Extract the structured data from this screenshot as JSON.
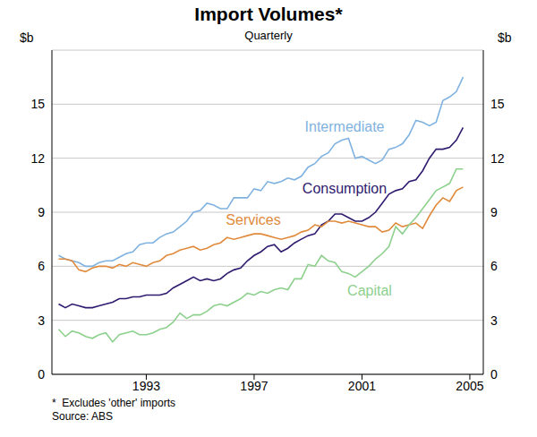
{
  "chart_data": {
    "type": "line",
    "title": "Import Volumes*",
    "subtitle": "Quarterly",
    "y_label": "$b",
    "notes": [
      "*  Excludes 'other' imports",
      "Source: ABS"
    ],
    "x": [
      1989.75,
      1990,
      1990.25,
      1990.5,
      1990.75,
      1991,
      1991.25,
      1991.5,
      1991.75,
      1992,
      1992.25,
      1992.5,
      1992.75,
      1993,
      1993.25,
      1993.5,
      1993.75,
      1994,
      1994.25,
      1994.5,
      1994.75,
      1995,
      1995.25,
      1995.5,
      1995.75,
      1996,
      1996.25,
      1996.5,
      1996.75,
      1997,
      1997.25,
      1997.5,
      1997.75,
      1998,
      1998.25,
      1998.5,
      1998.75,
      1999,
      1999.25,
      1999.5,
      1999.75,
      2000,
      2000.25,
      2000.5,
      2000.75,
      2001,
      2001.25,
      2001.5,
      2001.75,
      2002,
      2002.25,
      2002.5,
      2002.75,
      2003,
      2003.25,
      2003.5,
      2003.75,
      2004,
      2004.25,
      2004.5,
      2004.75
    ],
    "xlim": [
      1989.5,
      2005.5
    ],
    "xticks": [
      1993,
      1997,
      2001,
      2005
    ],
    "ylim": [
      0,
      18
    ],
    "yticks": [
      0,
      3,
      6,
      9,
      12,
      15
    ],
    "grid": true,
    "series": [
      {
        "name": "Intermediate",
        "color": "#7fb2e0",
        "values": [
          6.6,
          6.4,
          6.3,
          6.2,
          6.0,
          6.0,
          6.2,
          6.3,
          6.3,
          6.5,
          6.7,
          6.8,
          7.2,
          7.3,
          7.3,
          7.6,
          7.8,
          7.9,
          8.2,
          8.5,
          9.0,
          9.1,
          9.5,
          9.4,
          9.2,
          9.2,
          9.8,
          9.8,
          9.8,
          10.3,
          10.2,
          10.7,
          10.6,
          10.7,
          10.9,
          10.8,
          11.0,
          11.5,
          11.7,
          12.1,
          12.3,
          12.8,
          13.0,
          13.1,
          12.0,
          12.1,
          11.9,
          11.7,
          11.9,
          12.5,
          12.6,
          12.8,
          13.3,
          14.1,
          14.0,
          13.8,
          14.0,
          15.2,
          15.4,
          15.7,
          16.5
        ]
      },
      {
        "name": "Consumption",
        "color": "#2e1a6e",
        "values": [
          3.9,
          3.7,
          3.9,
          3.8,
          3.7,
          3.7,
          3.8,
          3.9,
          4.0,
          4.2,
          4.2,
          4.3,
          4.3,
          4.4,
          4.4,
          4.4,
          4.5,
          4.8,
          5.0,
          5.2,
          5.4,
          5.2,
          5.3,
          5.2,
          5.3,
          5.6,
          5.8,
          5.9,
          6.3,
          6.6,
          6.8,
          7.1,
          7.2,
          6.8,
          7.0,
          7.3,
          7.5,
          7.7,
          7.8,
          8.3,
          8.5,
          8.9,
          8.9,
          8.7,
          8.5,
          8.5,
          8.7,
          9.0,
          9.5,
          10.0,
          10.2,
          10.3,
          10.7,
          10.8,
          11.3,
          12.0,
          12.5,
          12.5,
          12.6,
          13.0,
          13.7
        ]
      },
      {
        "name": "Services",
        "color": "#e08a3c",
        "values": [
          6.4,
          6.4,
          6.3,
          5.8,
          5.7,
          5.9,
          6.0,
          6.0,
          5.9,
          6.1,
          6.0,
          6.2,
          6.1,
          6.0,
          6.2,
          6.3,
          6.6,
          6.7,
          6.9,
          7.0,
          7.1,
          6.9,
          7.0,
          7.2,
          7.3,
          7.6,
          7.5,
          7.6,
          7.7,
          7.8,
          7.8,
          7.7,
          7.6,
          7.5,
          7.6,
          7.7,
          7.9,
          8.0,
          8.3,
          8.2,
          8.5,
          8.5,
          8.4,
          8.5,
          8.4,
          8.3,
          8.2,
          8.2,
          7.9,
          8.0,
          8.4,
          8.2,
          8.3,
          8.4,
          8.1,
          8.8,
          9.4,
          9.8,
          9.6,
          10.2,
          10.4
        ]
      },
      {
        "name": "Capital",
        "color": "#8dd08d",
        "values": [
          2.5,
          2.1,
          2.4,
          2.3,
          2.1,
          2.0,
          2.2,
          2.3,
          1.8,
          2.2,
          2.3,
          2.4,
          2.2,
          2.2,
          2.3,
          2.5,
          2.6,
          2.9,
          3.4,
          3.1,
          3.3,
          3.3,
          3.5,
          3.8,
          3.9,
          3.8,
          4.0,
          4.2,
          4.5,
          4.4,
          4.6,
          4.5,
          4.7,
          4.8,
          4.7,
          5.3,
          5.3,
          6.1,
          6.0,
          6.6,
          6.3,
          6.2,
          5.7,
          5.6,
          5.4,
          5.7,
          6.0,
          6.4,
          6.7,
          7.1,
          8.2,
          7.8,
          8.3,
          8.7,
          9.2,
          9.7,
          10.2,
          10.4,
          10.6,
          11.4,
          11.4
        ]
      }
    ]
  }
}
